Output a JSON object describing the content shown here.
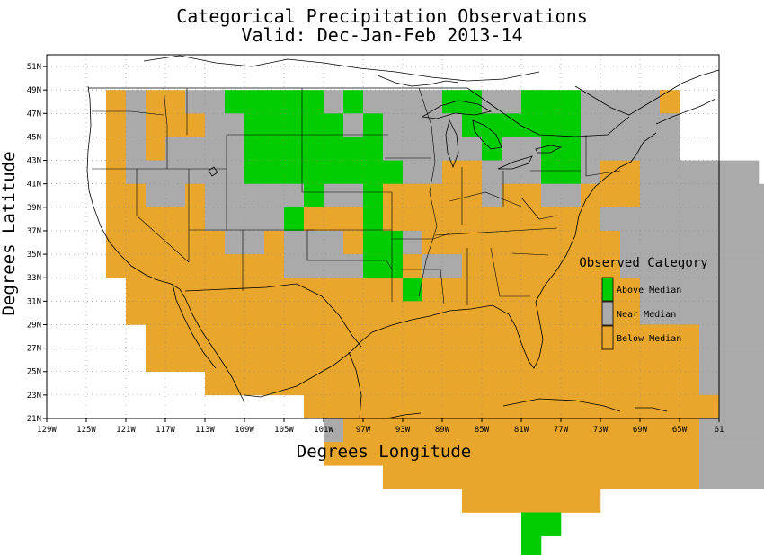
{
  "title_line1": "Categorical Precipitation Observations",
  "title_line2": "Valid: Dec-Jan-Feb 2013-14",
  "x_axis_label": "Degrees Longitude",
  "y_axis_label": "Degrees Latitude",
  "x_ticks": [
    "129W",
    "125W",
    "121W",
    "117W",
    "113W",
    "109W",
    "105W",
    "101W",
    "97W",
    "93W",
    "89W",
    "85W",
    "81W",
    "77W",
    "73W",
    "69W",
    "65W",
    "61"
  ],
  "y_ticks": [
    "51N",
    "49N",
    "47N",
    "45N",
    "43N",
    "41N",
    "39N",
    "37N",
    "35N",
    "33N",
    "31N",
    "29N",
    "27N",
    "25N",
    "23N",
    "21N"
  ],
  "legend": {
    "title": "Observed Category",
    "items": [
      {
        "label": "Above Median",
        "color": "#00cc00"
      },
      {
        "label": "Near Median",
        "color": "#aaaaaa"
      },
      {
        "label": "Below Median",
        "color": "#e8a62c"
      }
    ]
  },
  "chart_data": {
    "type": "heatmap",
    "title": "Categorical Precipitation Observations",
    "subtitle": "Valid: Dec-Jan-Feb 2013-14",
    "xlabel": "Degrees Longitude",
    "ylabel": "Degrees Latitude",
    "xlim": [
      -129,
      -61
    ],
    "ylim": [
      21,
      52
    ],
    "grid": true,
    "legend_position": "right",
    "categories": {
      "A": "Above Median",
      "N": "Near Median",
      "B": "Below Median"
    },
    "cell_size_deg": 2,
    "grid_origin": {
      "lon_west": -125,
      "lat_north": 49
    },
    "rows": [
      ".BNBBNNAAAAANANNNNAANNAAANNNNB...........",
      ".BNBBBNNAAAAANANNNNAAAAAANNNNN..........",
      ".BNBNNNNAAAAAAANNNNNANNAANNNNN..........................NN..",
      ".BNNNNNNAAAAAAAANNBBNNNAANBBNNNNNN......................NN..",
      ".BBNNBNNNNNANNABBBBBNBBNNBBBNNNNNNNNNNNNNNBN.NN",
      ".BBBBBNNNNABBBABBBBBBBBBBBNNNNNNNNNNNNNNNNNBNNNN",
      ".BBBBBBNNBNNNBAANBBBBBBBBBBNNNNNNNNNNBNNNNAANNA",
      ".BBBBBBBBBNNNNAABNNBBBBBBBBNNNNNNNNNNNAAANNAANN",
      "..BBBBBBBBBBBBBBABBBBBBBBBBBNNNNNNNNAAAAAAANN",
      "..BBBBBBBBBBBBBBBBBBBBBBBBBBNNNNNNNNAAAAAANN",
      "...BBBBBBBBBBBBBBBBBBBBBBBBBBBBNNNNNNNNNAAAN",
      "...BBBBBBBBBBBBBBBBBBBBBBBBBBBBNNNNNNNNAAAN",
      "......BBBBBBBBBBBBBBBBBBBBBBBBBNNNNBNNAAAN",
      "...........BBBBBBBBBBBBBBBBBBBBBNNNANNNNN",
      "............NBBBBBBBBBBBBBBBBBBNNNNNNNNNAN",
      "............BBBBBBBBBBBBBBBBBBBNNNNNNNNNA",
      "...............BBBBBBBBBBBBBBBBNNNNNNNNNNA",
      "...................BBBBBBB..........NNAA",
      "......................AA.............NNN",
      "......................A.............NN"
    ]
  }
}
